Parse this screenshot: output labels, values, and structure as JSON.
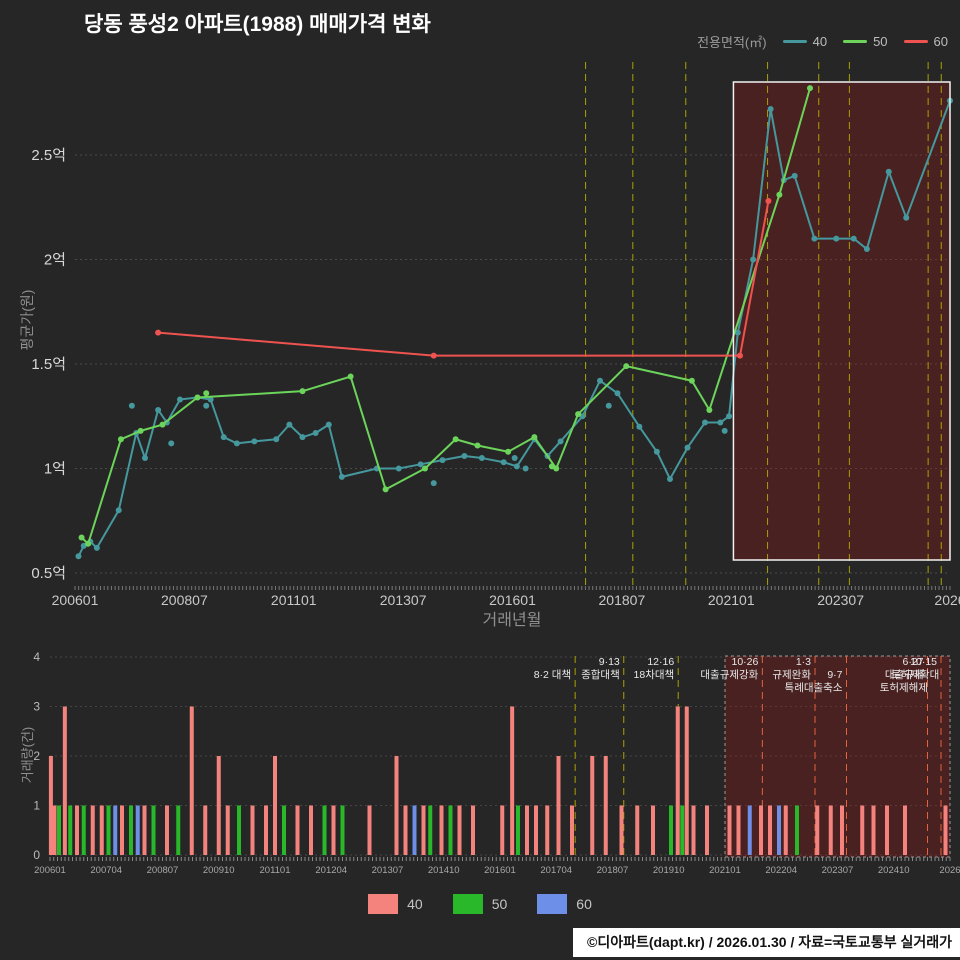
{
  "header": {
    "title": "당동 풍성2 아파트(1988) 매매가격 변화",
    "legend_title": "전용면적(㎡)",
    "legend_items": [
      {
        "label": "40",
        "color": "#45989d"
      },
      {
        "label": "50",
        "color": "#6cd45a"
      },
      {
        "label": "60",
        "color": "#ef5350"
      }
    ]
  },
  "footer": {
    "text": "©디아파트(dapt.kr) / 2026.01.30 / 자료=국토교통부 실거래가"
  },
  "volume_legend": [
    {
      "label": "40",
      "color": "#f4837d"
    },
    {
      "label": "50",
      "color": "#29b829"
    },
    {
      "label": "60",
      "color": "#6e8fe8"
    }
  ],
  "chart_data": [
    {
      "type": "line",
      "title": "당동 풍성2 아파트(1988) 매매가격 변화",
      "xlabel": "거래년월",
      "ylabel": "평균가(원)",
      "xlim": [
        2006,
        2026
      ],
      "ylim": [
        0.44,
        2.95
      ],
      "grid": true,
      "legend_position": "top-right",
      "y_ticks": [
        {
          "value": 0.5,
          "label": "0.5억"
        },
        {
          "value": 1.0,
          "label": "1억"
        },
        {
          "value": 1.5,
          "label": "1.5억"
        },
        {
          "value": 2.0,
          "label": "2억"
        },
        {
          "value": 2.5,
          "label": "2.5억"
        }
      ],
      "x_ticks": [
        {
          "value": 2006.0,
          "label": "200601"
        },
        {
          "value": 2008.5,
          "label": "200807"
        },
        {
          "value": 2011.0,
          "label": "201101"
        },
        {
          "value": 2013.5,
          "label": "201307"
        },
        {
          "value": 2016.0,
          "label": "201601"
        },
        {
          "value": 2018.5,
          "label": "201807"
        },
        {
          "value": 2021.0,
          "label": "202101"
        },
        {
          "value": 2023.5,
          "label": "202307"
        },
        {
          "value": 2026.0,
          "label": "2026"
        }
      ],
      "event_lines": [
        2017.67,
        2018.75,
        2019.96,
        2021.83,
        2023.0,
        2023.7,
        2025.5,
        2025.8
      ],
      "highlight": {
        "x0": 2021.05,
        "x1": 2026.0
      },
      "series": [
        {
          "name": "40",
          "color": "#45989d",
          "points": [
            [
              2006.08,
              0.58
            ],
            [
              2006.2,
              0.63
            ],
            [
              2006.35,
              0.65
            ],
            [
              2006.5,
              0.62
            ],
            [
              2007.0,
              0.8
            ],
            [
              2007.4,
              1.17
            ],
            [
              2007.6,
              1.05
            ],
            [
              2007.9,
              1.28
            ],
            [
              2008.1,
              1.22
            ],
            [
              2008.4,
              1.33
            ],
            [
              2008.8,
              1.34
            ],
            [
              2009.1,
              1.33
            ],
            [
              2009.4,
              1.15
            ],
            [
              2009.7,
              1.12
            ],
            [
              2010.1,
              1.13
            ],
            [
              2010.6,
              1.14
            ],
            [
              2010.9,
              1.21
            ],
            [
              2011.2,
              1.15
            ],
            [
              2011.5,
              1.17
            ],
            [
              2011.8,
              1.21
            ],
            [
              2012.1,
              0.96
            ],
            [
              2012.9,
              1.0
            ],
            [
              2013.4,
              1.0
            ],
            [
              2013.9,
              1.02
            ],
            [
              2014.4,
              1.04
            ],
            [
              2014.9,
              1.06
            ],
            [
              2015.3,
              1.05
            ],
            [
              2015.8,
              1.03
            ],
            [
              2016.1,
              1.01
            ],
            [
              2016.5,
              1.14
            ],
            [
              2016.8,
              1.06
            ],
            [
              2017.1,
              1.13
            ],
            [
              2017.6,
              1.25
            ],
            [
              2018.0,
              1.42
            ],
            [
              2018.4,
              1.36
            ],
            [
              2018.9,
              1.2
            ],
            [
              2019.3,
              1.08
            ],
            [
              2019.6,
              0.95
            ],
            [
              2020.0,
              1.1
            ],
            [
              2020.4,
              1.22
            ],
            [
              2020.75,
              1.22
            ],
            [
              2020.95,
              1.25
            ],
            [
              2021.15,
              1.65
            ],
            [
              2021.5,
              2.0
            ],
            [
              2021.9,
              2.72
            ],
            [
              2022.2,
              2.38
            ],
            [
              2022.45,
              2.4
            ],
            [
              2022.9,
              2.1
            ],
            [
              2023.4,
              2.1
            ],
            [
              2023.8,
              2.1
            ],
            [
              2024.1,
              2.05
            ],
            [
              2024.6,
              2.42
            ],
            [
              2025.0,
              2.2
            ],
            [
              2026.0,
              2.76
            ]
          ],
          "extra_points": [
            [
              2007.3,
              1.3
            ],
            [
              2008.2,
              1.12
            ],
            [
              2009.0,
              1.3
            ],
            [
              2014.2,
              0.93
            ],
            [
              2016.05,
              1.05
            ],
            [
              2016.3,
              1.0
            ],
            [
              2018.2,
              1.3
            ],
            [
              2020.85,
              1.18
            ]
          ]
        },
        {
          "name": "50",
          "color": "#6cd45a",
          "points": [
            [
              2006.15,
              0.67
            ],
            [
              2006.3,
              0.64
            ],
            [
              2007.05,
              1.14
            ],
            [
              2007.5,
              1.18
            ],
            [
              2008.0,
              1.21
            ],
            [
              2008.8,
              1.34
            ],
            [
              2011.2,
              1.37
            ],
            [
              2012.3,
              1.44
            ],
            [
              2013.1,
              0.9
            ],
            [
              2014.0,
              1.0
            ],
            [
              2014.7,
              1.14
            ],
            [
              2015.2,
              1.11
            ],
            [
              2015.9,
              1.08
            ],
            [
              2016.5,
              1.15
            ],
            [
              2017.0,
              1.0
            ],
            [
              2017.5,
              1.26
            ],
            [
              2018.6,
              1.49
            ],
            [
              2020.1,
              1.42
            ],
            [
              2020.5,
              1.28
            ],
            [
              2022.1,
              2.31
            ],
            [
              2022.8,
              2.82
            ]
          ],
          "extra_points": [
            [
              2016.9,
              1.01
            ],
            [
              2009.0,
              1.36
            ]
          ]
        },
        {
          "name": "60",
          "color": "#ef5350",
          "points": [
            [
              2007.9,
              1.65
            ],
            [
              2014.2,
              1.54
            ],
            [
              2021.2,
              1.54
            ],
            [
              2021.85,
              2.28
            ]
          ],
          "extra_points": []
        }
      ]
    },
    {
      "type": "bar",
      "ylabel": "거래량(건)",
      "ylim": [
        0,
        4
      ],
      "y_ticks": [
        0,
        1,
        2,
        3,
        4
      ],
      "x_ticks": [
        {
          "value": 2006.0,
          "label": "200601"
        },
        {
          "value": 2007.25,
          "label": "200704"
        },
        {
          "value": 2008.5,
          "label": "200807"
        },
        {
          "value": 2009.75,
          "label": "200910"
        },
        {
          "value": 2011.0,
          "label": "201101"
        },
        {
          "value": 2012.25,
          "label": "201204"
        },
        {
          "value": 2013.5,
          "label": "201307"
        },
        {
          "value": 2014.75,
          "label": "201410"
        },
        {
          "value": 2016.0,
          "label": "201601"
        },
        {
          "value": 2017.25,
          "label": "201704"
        },
        {
          "value": 2018.5,
          "label": "201807"
        },
        {
          "value": 2019.75,
          "label": "201910"
        },
        {
          "value": 2021.0,
          "label": "202101"
        },
        {
          "value": 2022.25,
          "label": "202204"
        },
        {
          "value": 2023.5,
          "label": "202307"
        },
        {
          "value": 2024.75,
          "label": "202410"
        },
        {
          "value": 2026.0,
          "label": "2026"
        }
      ],
      "colors": {
        "40": "#f4837d",
        "50": "#29b829",
        "60": "#6e8fe8"
      },
      "event_lines": [
        2017.67,
        2018.75,
        2019.96,
        2021.83,
        2023.0,
        2023.7,
        2025.5,
        2025.8
      ],
      "highlight": {
        "x0": 2021.0,
        "x1": 2026.0
      },
      "annotations": [
        {
          "x": 2017.67,
          "row": 1,
          "text": "8·2 대책"
        },
        {
          "x": 2018.75,
          "row": 0,
          "text": "9·13"
        },
        {
          "x": 2018.75,
          "row": 1,
          "text": "종합대책"
        },
        {
          "x": 2019.96,
          "row": 0,
          "text": "12·16"
        },
        {
          "x": 2019.96,
          "row": 1,
          "text": "18차대책"
        },
        {
          "x": 2021.83,
          "row": 0,
          "text": "10·26"
        },
        {
          "x": 2021.83,
          "row": 1,
          "text": "대출규제강화"
        },
        {
          "x": 2023.0,
          "row": 0,
          "text": "1·3"
        },
        {
          "x": 2023.0,
          "row": 1,
          "text": "규제완화"
        },
        {
          "x": 2023.7,
          "row": 1,
          "text": "9·7"
        },
        {
          "x": 2023.7,
          "row": 2,
          "text": "특례대출축소"
        },
        {
          "x": 2025.5,
          "row": 0,
          "text": "6·27"
        },
        {
          "x": 2025.5,
          "row": 1,
          "text": "대출규제"
        },
        {
          "x": 2025.6,
          "row": 2,
          "text": "토허제해제"
        },
        {
          "x": 2025.8,
          "row": 0,
          "text": "10·15"
        },
        {
          "x": 2025.85,
          "row": 1,
          "text": "토허제확대"
        }
      ],
      "bars": [
        [
          2006.02,
          2,
          "40"
        ],
        [
          2006.1,
          1,
          "40"
        ],
        [
          2006.2,
          1,
          "50"
        ],
        [
          2006.33,
          3,
          "40"
        ],
        [
          2006.45,
          1,
          "50"
        ],
        [
          2006.6,
          1,
          "40"
        ],
        [
          2006.75,
          1,
          "50"
        ],
        [
          2006.95,
          1,
          "40"
        ],
        [
          2007.15,
          1,
          "40"
        ],
        [
          2007.3,
          1,
          "50"
        ],
        [
          2007.45,
          1,
          "60"
        ],
        [
          2007.6,
          1,
          "40"
        ],
        [
          2007.8,
          1,
          "50"
        ],
        [
          2007.95,
          1,
          "60"
        ],
        [
          2008.1,
          1,
          "40"
        ],
        [
          2008.3,
          1,
          "50"
        ],
        [
          2008.6,
          1,
          "40"
        ],
        [
          2008.85,
          1,
          "50"
        ],
        [
          2009.15,
          3,
          "40"
        ],
        [
          2009.45,
          1,
          "40"
        ],
        [
          2009.75,
          2,
          "40"
        ],
        [
          2009.95,
          1,
          "40"
        ],
        [
          2010.2,
          1,
          "50"
        ],
        [
          2010.5,
          1,
          "40"
        ],
        [
          2010.8,
          1,
          "40"
        ],
        [
          2011.0,
          2,
          "40"
        ],
        [
          2011.2,
          1,
          "50"
        ],
        [
          2011.5,
          1,
          "40"
        ],
        [
          2011.8,
          1,
          "40"
        ],
        [
          2012.1,
          1,
          "50"
        ],
        [
          2012.3,
          1,
          "40"
        ],
        [
          2012.5,
          1,
          "50"
        ],
        [
          2013.1,
          1,
          "40"
        ],
        [
          2013.7,
          2,
          "40"
        ],
        [
          2013.9,
          1,
          "40"
        ],
        [
          2014.1,
          1,
          "60"
        ],
        [
          2014.3,
          1,
          "40"
        ],
        [
          2014.45,
          1,
          "50"
        ],
        [
          2014.7,
          1,
          "40"
        ],
        [
          2014.9,
          1,
          "50"
        ],
        [
          2015.1,
          1,
          "40"
        ],
        [
          2015.4,
          1,
          "40"
        ],
        [
          2016.05,
          1,
          "40"
        ],
        [
          2016.27,
          3,
          "40"
        ],
        [
          2016.4,
          1,
          "50"
        ],
        [
          2016.6,
          1,
          "40"
        ],
        [
          2016.8,
          1,
          "40"
        ],
        [
          2017.05,
          1,
          "40"
        ],
        [
          2017.3,
          2,
          "40"
        ],
        [
          2017.6,
          1,
          "40"
        ],
        [
          2018.05,
          2,
          "40"
        ],
        [
          2018.35,
          2,
          "40"
        ],
        [
          2018.7,
          1,
          "40"
        ],
        [
          2019.05,
          1,
          "40"
        ],
        [
          2019.4,
          1,
          "40"
        ],
        [
          2019.8,
          1,
          "50"
        ],
        [
          2019.95,
          3,
          "40"
        ],
        [
          2020.05,
          1,
          "50"
        ],
        [
          2020.15,
          3,
          "40"
        ],
        [
          2020.3,
          1,
          "40"
        ],
        [
          2020.6,
          1,
          "40"
        ],
        [
          2021.1,
          1,
          "40"
        ],
        [
          2021.3,
          1,
          "40"
        ],
        [
          2021.55,
          1,
          "60"
        ],
        [
          2021.8,
          1,
          "40"
        ],
        [
          2022.0,
          1,
          "40"
        ],
        [
          2022.2,
          1,
          "60"
        ],
        [
          2022.35,
          1,
          "40"
        ],
        [
          2022.6,
          1,
          "50"
        ],
        [
          2023.05,
          1,
          "40"
        ],
        [
          2023.35,
          1,
          "40"
        ],
        [
          2023.6,
          1,
          "40"
        ],
        [
          2024.05,
          1,
          "40"
        ],
        [
          2024.3,
          1,
          "40"
        ],
        [
          2024.6,
          1,
          "40"
        ],
        [
          2025.0,
          1,
          "40"
        ],
        [
          2025.9,
          1,
          "40"
        ]
      ]
    }
  ]
}
